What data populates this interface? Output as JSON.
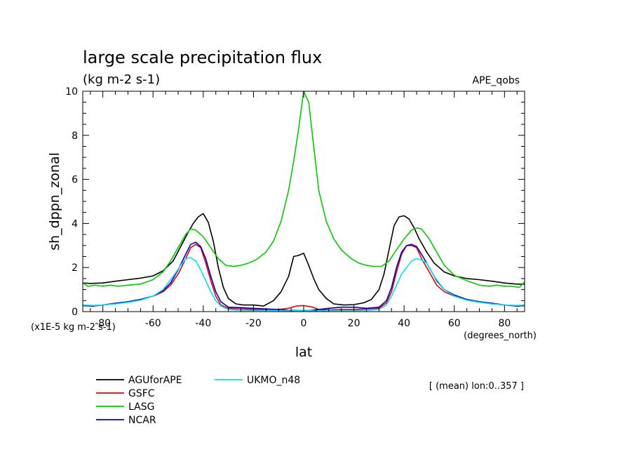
{
  "chart_data": {
    "type": "line",
    "title": "large scale precipitation flux",
    "subtitle": "(kg m-2 s-1)",
    "dataset_label": "APE_qobs",
    "xlabel": "lat",
    "x_units": "(degrees_north)",
    "ylabel": "sh_dppn_zonal",
    "y_scale_note": "(x1E-5 kg m-2 s-1)",
    "note": "[ (mean) lon:0..357 ]",
    "xlim": [
      -88,
      88
    ],
    "ylim": [
      0,
      10
    ],
    "x_ticks": [
      -80,
      -60,
      -40,
      -20,
      0,
      20,
      40,
      60,
      80
    ],
    "y_ticks": [
      0,
      2,
      4,
      6,
      8,
      10
    ],
    "x_tick_labels": [
      "-80",
      "-60",
      "-40",
      "-20",
      "0",
      "20",
      "40",
      "60",
      "80"
    ],
    "y_tick_labels": [
      "0",
      "2",
      "4",
      "6",
      "8",
      "10"
    ],
    "grid": false,
    "legend_position": "bottom-left",
    "series": [
      {
        "name": "AGUforAPE",
        "color": "#000000",
        "x": [
          -88,
          -85,
          -80,
          -75,
          -70,
          -65,
          -60,
          -56,
          -52,
          -49,
          -46,
          -44,
          -42,
          -40,
          -38,
          -36,
          -34,
          -32,
          -30,
          -27,
          -24,
          -20,
          -16,
          -12,
          -9,
          -6,
          -4,
          -2,
          0,
          2,
          4,
          6,
          9,
          12,
          16,
          20,
          24,
          27,
          30,
          32,
          34,
          36,
          38,
          40,
          42,
          44,
          46,
          49,
          52,
          56,
          60,
          65,
          70,
          75,
          80,
          85,
          88
        ],
        "y": [
          1.3,
          1.28,
          1.3,
          1.38,
          1.45,
          1.52,
          1.62,
          1.85,
          2.3,
          2.95,
          3.6,
          4.0,
          4.3,
          4.45,
          4.05,
          3.2,
          2.0,
          1.1,
          0.6,
          0.35,
          0.3,
          0.3,
          0.25,
          0.5,
          0.9,
          1.6,
          2.5,
          2.55,
          2.65,
          2.1,
          1.5,
          1.0,
          0.6,
          0.35,
          0.3,
          0.32,
          0.4,
          0.55,
          1.0,
          1.7,
          2.8,
          3.9,
          4.3,
          4.35,
          4.2,
          3.8,
          3.3,
          2.7,
          2.2,
          1.8,
          1.62,
          1.5,
          1.45,
          1.38,
          1.3,
          1.25,
          1.25
        ]
      },
      {
        "name": "GSFC",
        "color": "#ee0000",
        "x": [
          -88,
          -84,
          -80,
          -75,
          -70,
          -65,
          -60,
          -56,
          -53,
          -50,
          -47,
          -45,
          -43,
          -41,
          -39,
          -37,
          -35,
          -33,
          -30,
          -25,
          -20,
          -15,
          -10,
          -6,
          -3,
          0,
          3,
          6,
          10,
          15,
          20,
          25,
          30,
          33,
          35,
          37,
          39,
          41,
          43,
          45,
          47,
          50,
          53,
          56,
          60,
          65,
          70,
          75,
          80,
          85,
          88
        ],
        "y": [
          0.28,
          0.25,
          0.3,
          0.35,
          0.45,
          0.55,
          0.7,
          0.9,
          1.2,
          1.7,
          2.4,
          2.9,
          3.05,
          2.9,
          2.2,
          1.4,
          0.7,
          0.3,
          0.15,
          0.12,
          0.1,
          0.1,
          0.1,
          0.15,
          0.25,
          0.27,
          0.22,
          0.1,
          0.08,
          0.1,
          0.1,
          0.12,
          0.15,
          0.4,
          0.9,
          1.8,
          2.6,
          3.0,
          3.0,
          2.9,
          2.4,
          1.8,
          1.2,
          0.9,
          0.7,
          0.55,
          0.45,
          0.35,
          0.3,
          0.25,
          0.28
        ]
      },
      {
        "name": "LASG",
        "color": "#00cc00",
        "x": [
          -88,
          -86,
          -83,
          -80,
          -77,
          -74,
          -70,
          -65,
          -60,
          -56,
          -53,
          -50,
          -47,
          -45,
          -43,
          -40,
          -37,
          -34,
          -31,
          -28,
          -25,
          -22,
          -19,
          -15,
          -12,
          -9,
          -6,
          -4,
          -2,
          0,
          2,
          4,
          6,
          9,
          12,
          15,
          19,
          22,
          25,
          28,
          31,
          34,
          37,
          40,
          43,
          45,
          47,
          50,
          53,
          56,
          60,
          65,
          70,
          74,
          77,
          80,
          83,
          86,
          88
        ],
        "y": [
          1.3,
          1.15,
          1.2,
          1.15,
          1.2,
          1.15,
          1.2,
          1.25,
          1.45,
          1.8,
          2.3,
          2.9,
          3.5,
          3.75,
          3.7,
          3.4,
          2.9,
          2.4,
          2.1,
          2.05,
          2.1,
          2.2,
          2.35,
          2.7,
          3.2,
          4.1,
          5.5,
          6.8,
          8.3,
          10.0,
          9.5,
          7.5,
          5.5,
          4.1,
          3.3,
          2.8,
          2.4,
          2.2,
          2.1,
          2.05,
          2.05,
          2.3,
          2.8,
          3.3,
          3.7,
          3.8,
          3.75,
          3.3,
          2.7,
          2.1,
          1.65,
          1.4,
          1.2,
          1.15,
          1.2,
          1.15,
          1.15,
          1.1,
          1.35
        ]
      },
      {
        "name": "NCAR",
        "color": "#0000cc",
        "x": [
          -88,
          -84,
          -80,
          -75,
          -70,
          -65,
          -60,
          -56,
          -53,
          -50,
          -47,
          -45,
          -43,
          -41,
          -39,
          -37,
          -35,
          -33,
          -30,
          -25,
          -20,
          -15,
          -10,
          -6,
          -3,
          0,
          3,
          6,
          10,
          15,
          20,
          25,
          30,
          33,
          35,
          37,
          39,
          41,
          43,
          45,
          47,
          50,
          53,
          56,
          60,
          65,
          70,
          75,
          80,
          85,
          88
        ],
        "y": [
          0.27,
          0.25,
          0.3,
          0.38,
          0.45,
          0.55,
          0.7,
          0.95,
          1.3,
          1.9,
          2.6,
          3.05,
          3.15,
          2.95,
          2.4,
          1.6,
          0.9,
          0.45,
          0.2,
          0.18,
          0.15,
          0.12,
          0.1,
          0.05,
          0.05,
          0.05,
          0.05,
          0.1,
          0.15,
          0.2,
          0.2,
          0.15,
          0.2,
          0.5,
          1.1,
          2.0,
          2.7,
          3.0,
          3.05,
          2.95,
          2.6,
          2.0,
          1.4,
          1.0,
          0.75,
          0.55,
          0.45,
          0.38,
          0.3,
          0.25,
          0.27
        ]
      },
      {
        "name": "UKMO_n48",
        "color": "#00e5ee",
        "x": [
          -88,
          -84,
          -80,
          -75,
          -70,
          -65,
          -60,
          -56,
          -52,
          -49,
          -47,
          -45,
          -43,
          -41,
          -39,
          -37,
          -35,
          -33,
          -30,
          -25,
          -20,
          -15,
          -10,
          -5,
          0,
          5,
          10,
          15,
          20,
          25,
          30,
          33,
          35,
          37,
          39,
          41,
          43,
          45,
          47,
          49,
          52,
          56,
          60,
          65,
          70,
          75,
          80,
          85,
          88
        ],
        "y": [
          0.3,
          0.28,
          0.3,
          0.35,
          0.42,
          0.52,
          0.7,
          1.0,
          1.6,
          2.1,
          2.4,
          2.45,
          2.3,
          1.9,
          1.4,
          0.9,
          0.5,
          0.25,
          0.1,
          0.05,
          0.05,
          0.05,
          0.05,
          0.03,
          0.05,
          0.03,
          0.05,
          0.05,
          0.05,
          0.05,
          0.1,
          0.3,
          0.7,
          1.2,
          1.7,
          2.0,
          2.3,
          2.4,
          2.35,
          2.2,
          1.6,
          1.0,
          0.7,
          0.52,
          0.42,
          0.35,
          0.3,
          0.28,
          0.3
        ]
      }
    ]
  }
}
